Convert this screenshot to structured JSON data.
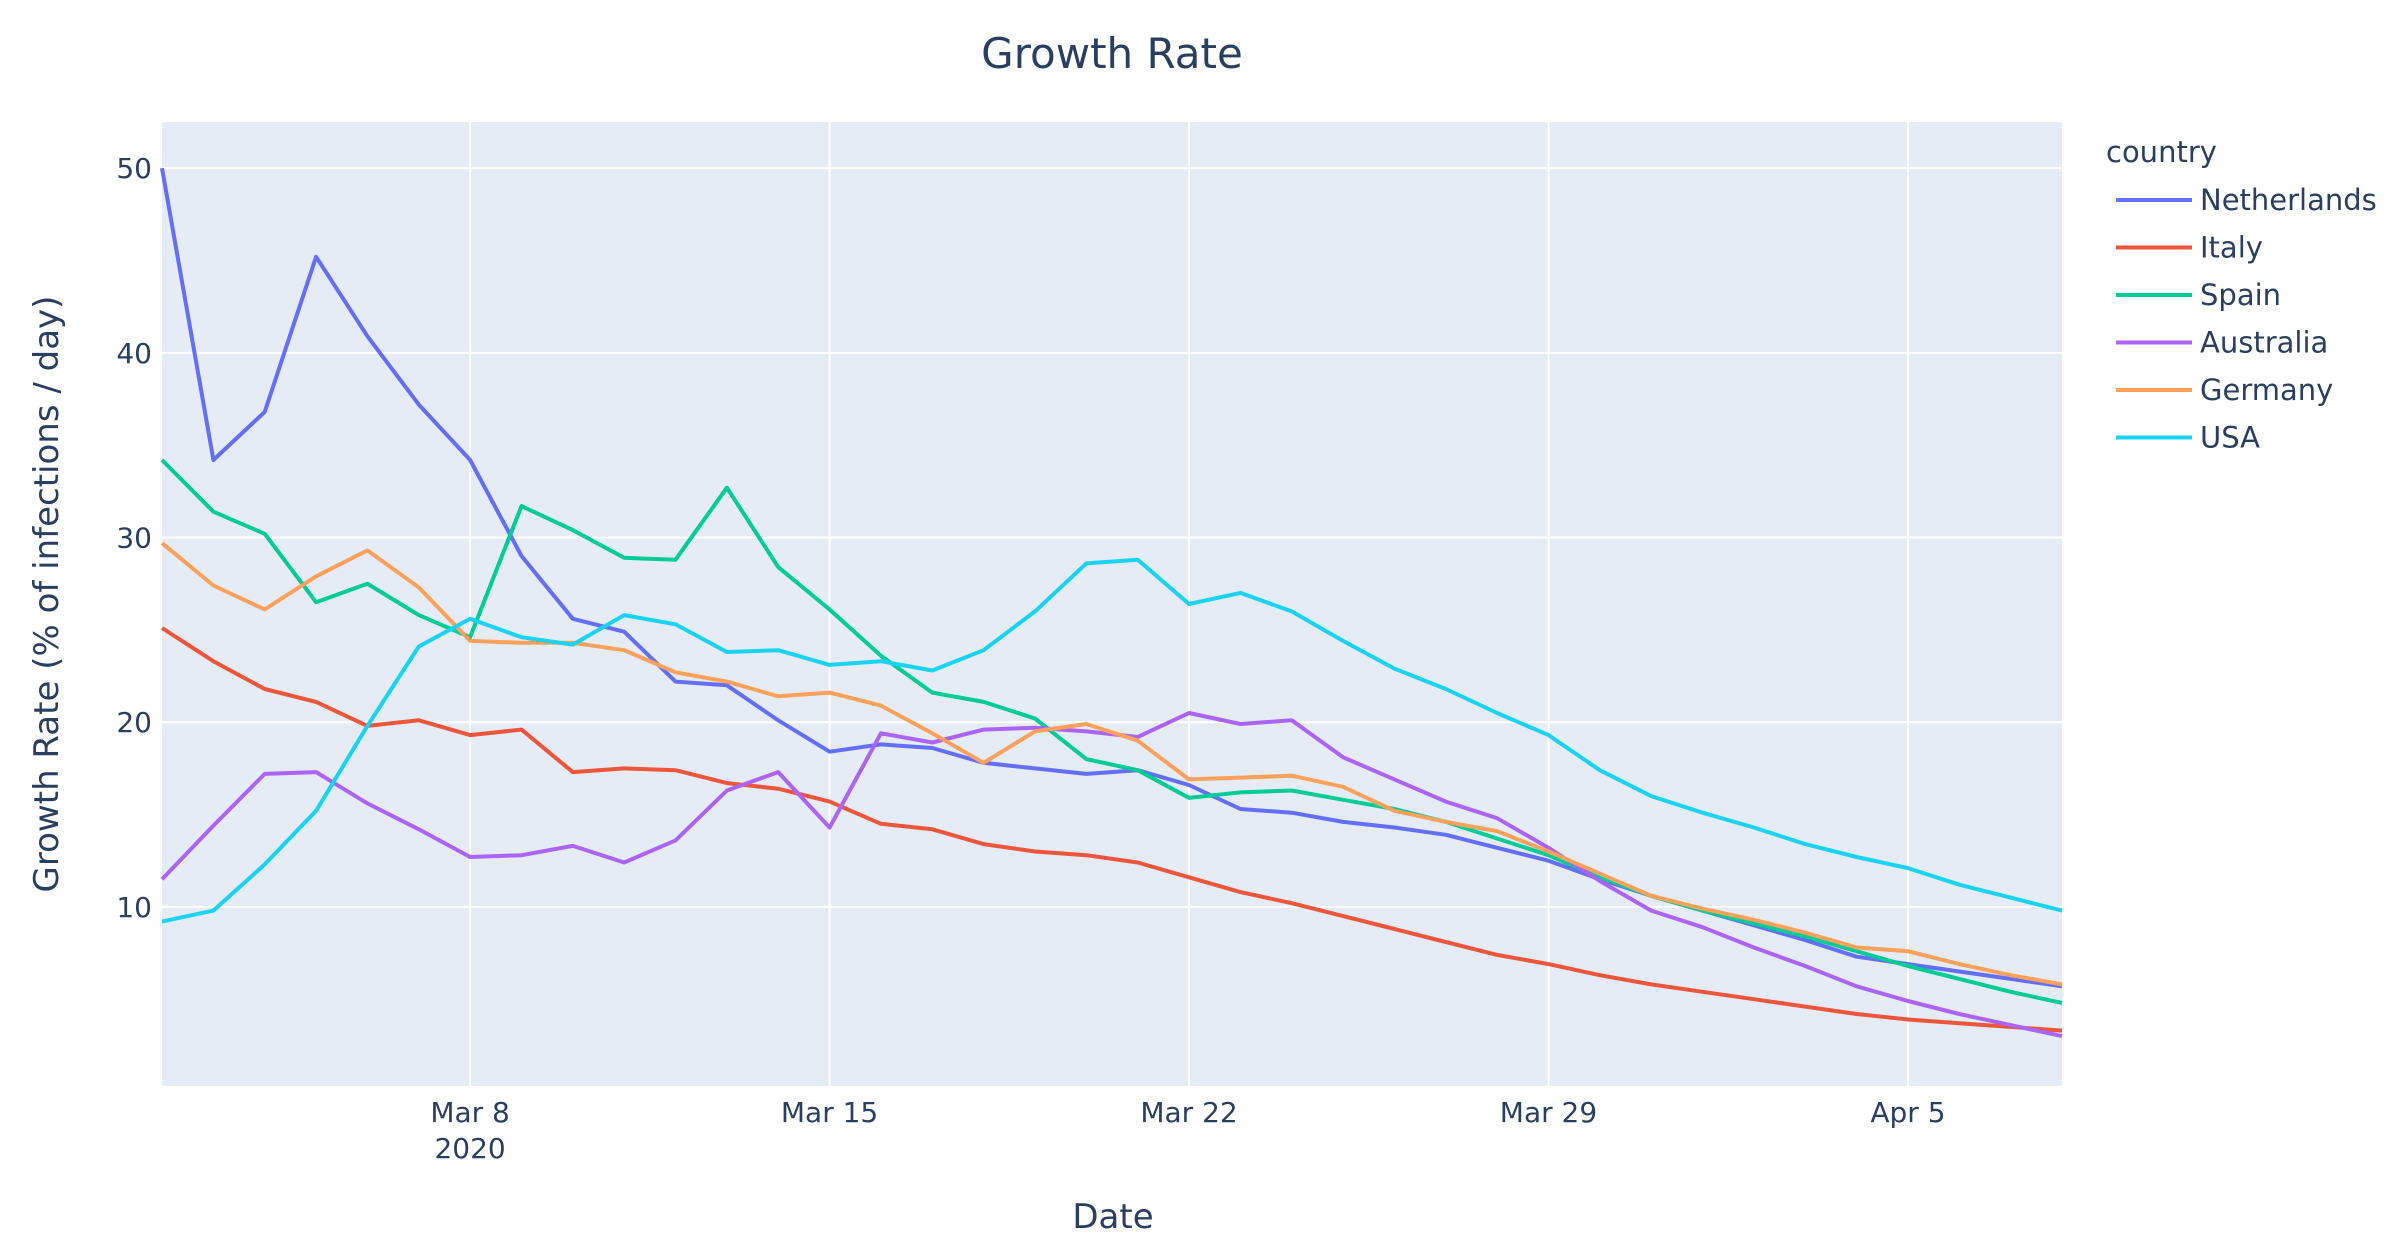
{
  "chart_data": {
    "type": "line",
    "title": "Growth Rate",
    "xlabel": "Date",
    "ylabel": "Growth Rate (% of infections / day)",
    "x_start": "2020-03-02",
    "x_end": "2020-04-08",
    "xlim": [
      "2020-03-02",
      "2020-04-08"
    ],
    "ylim": [
      0.3,
      52.5
    ],
    "x_ticks": [
      {
        "date": "2020-03-08",
        "label": "Mar 8",
        "sub": "2020"
      },
      {
        "date": "2020-03-15",
        "label": "Mar 15",
        "sub": ""
      },
      {
        "date": "2020-03-22",
        "label": "Mar 22",
        "sub": ""
      },
      {
        "date": "2020-03-29",
        "label": "Mar 29",
        "sub": ""
      },
      {
        "date": "2020-04-05",
        "label": "Apr 5",
        "sub": ""
      }
    ],
    "y_ticks": [
      10,
      20,
      30,
      40,
      50
    ],
    "grid": true,
    "legend": {
      "title": "country",
      "position": "right"
    },
    "background": "#e5ecf6",
    "series": [
      {
        "name": "Netherlands",
        "color": "#636efa",
        "values": [
          50.0,
          34.2,
          36.8,
          45.2,
          40.9,
          37.2,
          34.2,
          29.0,
          25.6,
          24.9,
          22.2,
          22.0,
          20.1,
          18.4,
          18.8,
          18.6,
          17.8,
          17.5,
          17.2,
          17.4,
          16.6,
          15.3,
          15.1,
          14.6,
          14.3,
          13.9,
          13.2,
          12.5,
          11.5,
          10.6,
          9.8,
          9.0,
          8.2,
          7.3,
          6.9,
          6.5,
          6.1,
          5.7
        ]
      },
      {
        "name": "Italy",
        "color": "#ef553b",
        "values": [
          25.1,
          23.3,
          21.8,
          21.1,
          19.8,
          20.1,
          19.3,
          19.6,
          17.3,
          17.5,
          17.4,
          16.7,
          16.4,
          15.7,
          14.5,
          14.2,
          13.4,
          13.0,
          12.8,
          12.4,
          11.6,
          10.8,
          10.2,
          9.5,
          8.8,
          8.1,
          7.4,
          6.9,
          6.3,
          5.8,
          5.4,
          5.0,
          4.6,
          4.2,
          3.9,
          3.7,
          3.5,
          3.3
        ]
      },
      {
        "name": "Spain",
        "color": "#00cc96",
        "values": [
          34.2,
          31.4,
          30.2,
          26.5,
          27.5,
          25.8,
          24.6,
          31.7,
          30.4,
          28.9,
          28.8,
          32.7,
          28.4,
          26.1,
          23.6,
          21.6,
          21.1,
          20.2,
          18.0,
          17.4,
          15.9,
          16.2,
          16.3,
          15.8,
          15.3,
          14.6,
          13.7,
          12.8,
          11.6,
          10.6,
          9.8,
          9.1,
          8.4,
          7.6,
          6.8,
          6.1,
          5.4,
          4.8
        ]
      },
      {
        "name": "Australia",
        "color": "#ab63fa",
        "values": [
          11.5,
          14.4,
          17.2,
          17.3,
          15.6,
          14.2,
          12.7,
          12.8,
          13.3,
          12.4,
          13.6,
          16.3,
          17.3,
          14.3,
          19.4,
          18.9,
          19.6,
          19.7,
          19.5,
          19.2,
          20.5,
          19.9,
          20.1,
          18.1,
          16.9,
          15.7,
          14.8,
          13.2,
          11.4,
          9.8,
          8.9,
          7.8,
          6.8,
          5.7,
          4.9,
          4.2,
          3.6,
          3.0
        ]
      },
      {
        "name": "Germany",
        "color": "#ffa15a",
        "values": [
          29.7,
          27.4,
          26.1,
          27.9,
          29.3,
          27.3,
          24.4,
          24.3,
          24.3,
          23.9,
          22.7,
          22.2,
          21.4,
          21.6,
          20.9,
          19.4,
          17.8,
          19.5,
          19.9,
          19.0,
          16.9,
          17.0,
          17.1,
          16.5,
          15.2,
          14.6,
          14.1,
          13.0,
          11.8,
          10.6,
          9.9,
          9.3,
          8.6,
          7.8,
          7.6,
          6.9,
          6.3,
          5.8
        ]
      },
      {
        "name": "USA",
        "color": "#19d3f3",
        "values": [
          9.2,
          9.8,
          12.3,
          15.2,
          19.8,
          24.1,
          25.6,
          24.6,
          24.2,
          25.8,
          25.3,
          23.8,
          23.9,
          23.1,
          23.3,
          22.8,
          23.9,
          26.0,
          28.6,
          28.8,
          26.4,
          27.0,
          26.0,
          24.4,
          22.9,
          21.8,
          20.5,
          19.3,
          17.4,
          16.0,
          15.1,
          14.3,
          13.4,
          12.7,
          12.1,
          11.2,
          10.5,
          9.8
        ]
      }
    ]
  }
}
